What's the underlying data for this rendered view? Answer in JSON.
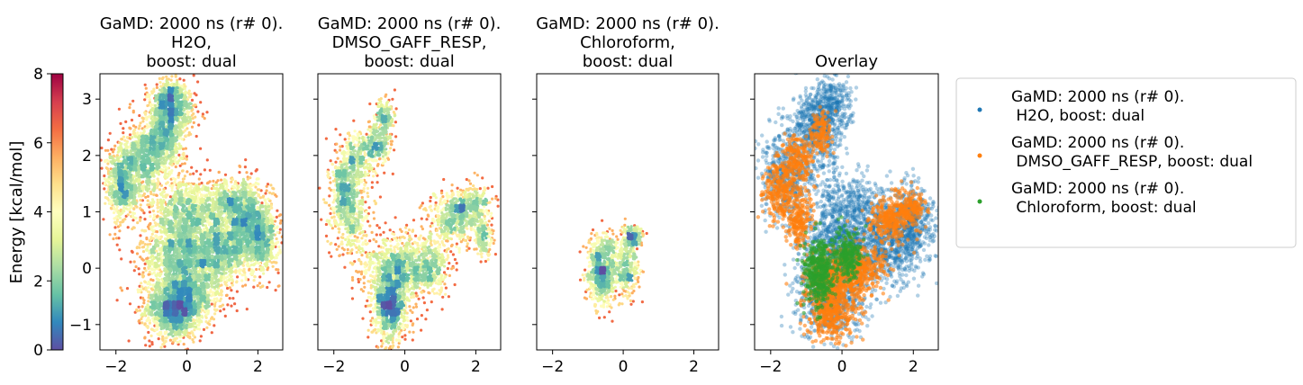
{
  "chart_data": [
    {
      "type": "heatmap",
      "title_lines": [
        "GaMD: 2000 ns (r# 0).",
        "H2O,",
        "boost: dual"
      ],
      "xticks": [
        -2,
        0,
        2
      ],
      "yticks": [
        -1,
        0,
        1,
        2,
        3
      ],
      "xlim": [
        -2.45,
        2.7
      ],
      "ylim": [
        -1.45,
        3.45
      ],
      "clusters": [
        {
          "x": -0.35,
          "y": -0.7,
          "sx": 0.4,
          "sy": 0.28,
          "n": 1400
        },
        {
          "x": -0.2,
          "y": 0.25,
          "sx": 0.55,
          "sy": 0.35,
          "n": 1200
        },
        {
          "x": 0.95,
          "y": 0.3,
          "sx": 0.45,
          "sy": 0.3,
          "n": 900
        },
        {
          "x": 1.7,
          "y": 0.85,
          "sx": 0.35,
          "sy": 0.35,
          "n": 800
        },
        {
          "x": 2.1,
          "y": 0.5,
          "sx": 0.25,
          "sy": 0.3,
          "n": 500
        },
        {
          "x": -0.1,
          "y": 1.05,
          "sx": 0.5,
          "sy": 0.3,
          "n": 700
        },
        {
          "x": -1.8,
          "y": 1.5,
          "sx": 0.25,
          "sy": 0.35,
          "n": 700
        },
        {
          "x": -1.25,
          "y": 1.9,
          "sx": 0.3,
          "sy": 0.3,
          "n": 500
        },
        {
          "x": -0.7,
          "y": 2.3,
          "sx": 0.3,
          "sy": 0.35,
          "n": 700
        },
        {
          "x": -0.35,
          "y": 2.75,
          "sx": 0.3,
          "sy": 0.25,
          "n": 500
        },
        {
          "x": -0.5,
          "y": 3.05,
          "sx": 0.25,
          "sy": 0.15,
          "n": 250
        },
        {
          "x": 1.1,
          "y": 1.15,
          "sx": 0.45,
          "sy": 0.2,
          "n": 400
        },
        {
          "x": 0.3,
          "y": -0.4,
          "sx": 0.35,
          "sy": 0.3,
          "n": 400
        }
      ]
    },
    {
      "type": "heatmap",
      "title_lines": [
        "GaMD: 2000 ns (r# 0).",
        "DMSO_GAFF_RESP,",
        "boost: dual"
      ],
      "xticks": [
        -2,
        0,
        2
      ],
      "yticks": [
        -1,
        0,
        1,
        2,
        3
      ],
      "xlim": [
        -2.45,
        2.7
      ],
      "ylim": [
        -1.45,
        3.45
      ],
      "clusters": [
        {
          "x": -0.4,
          "y": -0.7,
          "sx": 0.25,
          "sy": 0.3,
          "n": 800
        },
        {
          "x": -0.2,
          "y": 0.0,
          "sx": 0.5,
          "sy": 0.3,
          "n": 800
        },
        {
          "x": 0.7,
          "y": 0.05,
          "sx": 0.3,
          "sy": 0.25,
          "n": 350
        },
        {
          "x": -1.7,
          "y": 1.4,
          "sx": 0.2,
          "sy": 0.3,
          "n": 400
        },
        {
          "x": -1.5,
          "y": 0.85,
          "sx": 0.3,
          "sy": 0.3,
          "n": 300
        },
        {
          "x": -1.3,
          "y": 1.95,
          "sx": 0.25,
          "sy": 0.25,
          "n": 300
        },
        {
          "x": -0.75,
          "y": 2.2,
          "sx": 0.2,
          "sy": 0.2,
          "n": 250
        },
        {
          "x": -0.6,
          "y": 2.7,
          "sx": 0.15,
          "sy": 0.15,
          "n": 150
        },
        {
          "x": 1.35,
          "y": 0.85,
          "sx": 0.35,
          "sy": 0.25,
          "n": 400
        },
        {
          "x": 1.9,
          "y": 1.1,
          "sx": 0.3,
          "sy": 0.2,
          "n": 300
        },
        {
          "x": 2.2,
          "y": 0.55,
          "sx": 0.15,
          "sy": 0.2,
          "n": 150
        }
      ]
    },
    {
      "type": "heatmap",
      "title_lines": [
        "GaMD: 2000 ns (r# 0).",
        "Chloroform,",
        "boost: dual"
      ],
      "xticks": [
        -2,
        0,
        2
      ],
      "yticks": [
        -1,
        0,
        1,
        2,
        3
      ],
      "xlim": [
        -2.45,
        2.7
      ],
      "ylim": [
        -1.45,
        3.45
      ],
      "clusters": [
        {
          "x": -0.6,
          "y": -0.1,
          "sx": 0.22,
          "sy": 0.28,
          "n": 600
        },
        {
          "x": 0.1,
          "y": 0.0,
          "sx": 0.18,
          "sy": 0.22,
          "n": 300
        },
        {
          "x": 0.25,
          "y": 0.55,
          "sx": 0.15,
          "sy": 0.1,
          "n": 180
        },
        {
          "x": -0.45,
          "y": 0.4,
          "sx": 0.15,
          "sy": 0.12,
          "n": 100
        }
      ]
    },
    {
      "type": "scatter",
      "title": "Overlay",
      "xticks": [
        -2,
        0,
        2
      ],
      "yticks": [
        -1,
        0,
        1,
        2,
        3
      ],
      "xlim": [
        -2.45,
        2.7
      ],
      "ylim": [
        -1.45,
        3.45
      ],
      "series": [
        {
          "name": "GaMD: 2000 ns (r# 0).\n H2O, boost: dual",
          "color": "#1f77b4"
        },
        {
          "name": "GaMD: 2000 ns (r# 0).\n DMSO_GAFF_RESP, boost: dual",
          "color": "#ff7f0e"
        },
        {
          "name": "GaMD: 2000 ns (r# 0).\n Chloroform, boost: dual",
          "color": "#2ca02c"
        }
      ],
      "series_clusters": [
        [
          {
            "x": -0.35,
            "y": -0.5,
            "sx": 0.5,
            "sy": 0.35,
            "n": 700
          },
          {
            "x": 0.0,
            "y": 0.45,
            "sx": 0.6,
            "sy": 0.3,
            "n": 700
          },
          {
            "x": 1.2,
            "y": 0.4,
            "sx": 0.5,
            "sy": 0.35,
            "n": 600
          },
          {
            "x": 1.9,
            "y": 0.8,
            "sx": 0.35,
            "sy": 0.35,
            "n": 500
          },
          {
            "x": -1.6,
            "y": 1.7,
            "sx": 0.35,
            "sy": 0.45,
            "n": 500
          },
          {
            "x": -0.7,
            "y": 2.4,
            "sx": 0.35,
            "sy": 0.4,
            "n": 500
          },
          {
            "x": -0.35,
            "y": 2.85,
            "sx": 0.3,
            "sy": 0.25,
            "n": 350
          },
          {
            "x": 0.2,
            "y": 1.1,
            "sx": 0.5,
            "sy": 0.3,
            "n": 400
          }
        ],
        [
          {
            "x": -0.3,
            "y": -0.7,
            "sx": 0.35,
            "sy": 0.3,
            "n": 500
          },
          {
            "x": -0.1,
            "y": -0.1,
            "sx": 0.45,
            "sy": 0.25,
            "n": 400
          },
          {
            "x": 0.7,
            "y": 0.0,
            "sx": 0.3,
            "sy": 0.2,
            "n": 200
          },
          {
            "x": -1.75,
            "y": 1.35,
            "sx": 0.2,
            "sy": 0.25,
            "n": 250
          },
          {
            "x": -1.25,
            "y": 1.95,
            "sx": 0.25,
            "sy": 0.2,
            "n": 200
          },
          {
            "x": -1.2,
            "y": 0.9,
            "sx": 0.2,
            "sy": 0.25,
            "n": 200
          },
          {
            "x": -0.6,
            "y": 2.4,
            "sx": 0.15,
            "sy": 0.2,
            "n": 130
          },
          {
            "x": 1.35,
            "y": 0.85,
            "sx": 0.3,
            "sy": 0.2,
            "n": 250
          },
          {
            "x": 1.9,
            "y": 1.05,
            "sx": 0.25,
            "sy": 0.15,
            "n": 180
          }
        ],
        [
          {
            "x": -0.65,
            "y": -0.05,
            "sx": 0.2,
            "sy": 0.28,
            "n": 400
          },
          {
            "x": 0.15,
            "y": 0.2,
            "sx": 0.18,
            "sy": 0.22,
            "n": 250
          }
        ]
      ]
    }
  ],
  "figure": {
    "ylabel": "Energy [kcal/mol]",
    "colorbar": {
      "ticks": [
        0,
        2,
        4,
        6,
        8
      ],
      "range": [
        0,
        8
      ],
      "colormap": "Spectral_r",
      "colormap_stops": [
        "#5e4fa2",
        "#3288bd",
        "#66c2a5",
        "#abdda4",
        "#e6f598",
        "#ffffbf",
        "#fee08b",
        "#fdae61",
        "#f46d43",
        "#d53e4f",
        "#9e0142"
      ]
    }
  }
}
